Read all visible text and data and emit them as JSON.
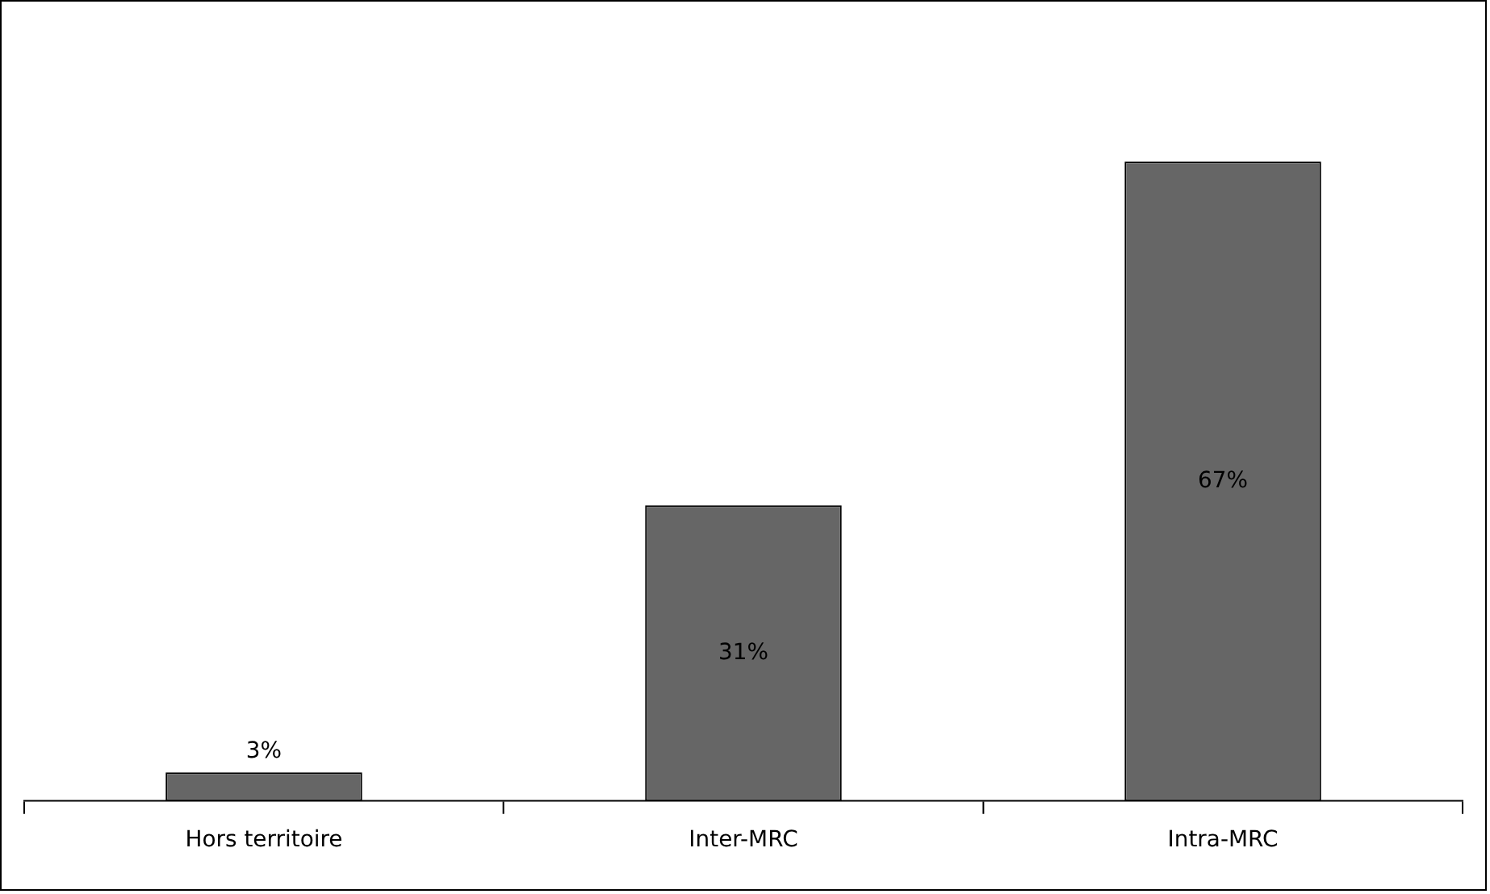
{
  "chart_data": {
    "type": "bar",
    "categories": [
      "Hors territoire",
      "Inter-MRC",
      "Intra-MRC"
    ],
    "values": [
      3,
      31,
      67
    ],
    "color": "#666666",
    "data_labels": true,
    "value_labels": [
      "3%",
      "31%",
      "67%"
    ]
  }
}
